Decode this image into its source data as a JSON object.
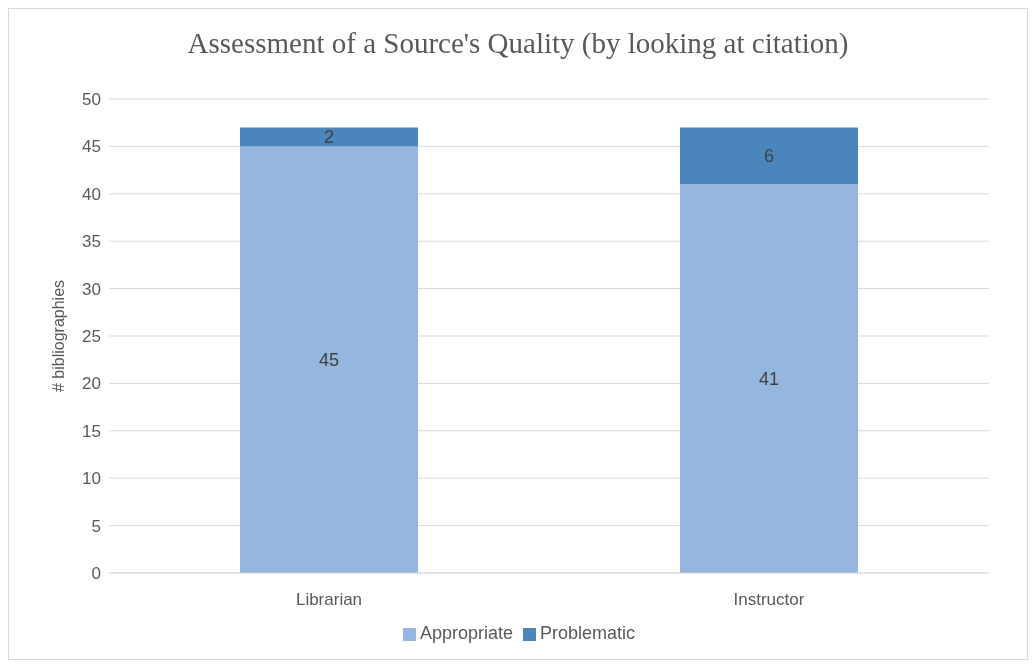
{
  "chart_data": {
    "type": "bar",
    "title": "Assessment of a Source's Quality (by looking at citation)",
    "ylabel": "# bibliographies",
    "categories": [
      "Librarian",
      "Instructor"
    ],
    "series": [
      {
        "name": "Appropriate",
        "color": "#95b7df",
        "values": [
          45,
          41
        ]
      },
      {
        "name": "Problematic",
        "color": "#4a86bc",
        "values": [
          2,
          6
        ]
      }
    ],
    "stacked": true,
    "ylim": [
      0,
      50
    ],
    "yticks": [
      0,
      5,
      10,
      15,
      20,
      25,
      30,
      35,
      40,
      45,
      50
    ],
    "grid": "y",
    "legend": "bottom",
    "data_labels": true
  }
}
